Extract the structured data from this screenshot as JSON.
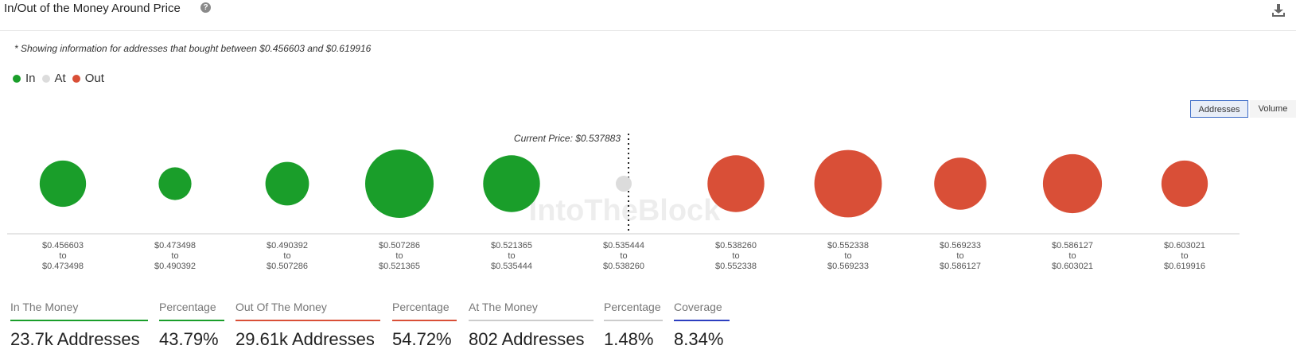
{
  "header": {
    "title": "In/Out of the Money Around Price",
    "help": "?"
  },
  "note": "* Showing information for addresses that bought between $0.456603 and $0.619916",
  "legend": [
    {
      "label": "In",
      "color": "#1a9e2a"
    },
    {
      "label": "At",
      "color": "#dcdcdc"
    },
    {
      "label": "Out",
      "color": "#d94f37"
    }
  ],
  "toggle": {
    "addresses": "Addresses",
    "volume": "Volume",
    "selected": "Addresses"
  },
  "chart_data": {
    "type": "bubble",
    "current_price_label": "Current Price: $0.537883",
    "watermark": "IntoTheBlock",
    "bins": [
      {
        "low": "$0.456603",
        "high": "$0.473498",
        "status": "In",
        "size": 3400
      },
      {
        "low": "$0.473498",
        "high": "$0.490392",
        "status": "In",
        "size": 1700
      },
      {
        "low": "$0.490392",
        "high": "$0.507286",
        "status": "In",
        "size": 3000
      },
      {
        "low": "$0.507286",
        "high": "$0.521365",
        "status": "In",
        "size": 7400
      },
      {
        "low": "$0.521365",
        "high": "$0.535444",
        "status": "In",
        "size": 5100
      },
      {
        "low": "$0.535444",
        "high": "$0.538260",
        "status": "At",
        "size": 400
      },
      {
        "low": "$0.538260",
        "high": "$0.552338",
        "status": "Out",
        "size": 5100
      },
      {
        "low": "$0.552338",
        "high": "$0.569233",
        "status": "Out",
        "size": 7200
      },
      {
        "low": "$0.569233",
        "high": "$0.586127",
        "status": "Out",
        "size": 4300
      },
      {
        "low": "$0.586127",
        "high": "$0.603021",
        "status": "Out",
        "size": 5500
      },
      {
        "low": "$0.603021",
        "high": "$0.619916",
        "status": "Out",
        "size": 3400
      }
    ],
    "range_separator": "to"
  },
  "stats": [
    {
      "label": "In The Money",
      "value": "23.7k Addresses",
      "color": "#1a9e2a"
    },
    {
      "label": "Percentage",
      "value": "43.79%",
      "color": "#1a9e2a"
    },
    {
      "label": "Out Of The Money",
      "value": "29.61k Addresses",
      "color": "#d94f37"
    },
    {
      "label": "Percentage",
      "value": "54.72%",
      "color": "#d94f37"
    },
    {
      "label": "At The Money",
      "value": "802 Addresses",
      "color": "#cccccc"
    },
    {
      "label": "Percentage",
      "value": "1.48%",
      "color": "#cccccc"
    },
    {
      "label": "Coverage",
      "value": "8.34%",
      "color": "#2d3fc0"
    }
  ]
}
